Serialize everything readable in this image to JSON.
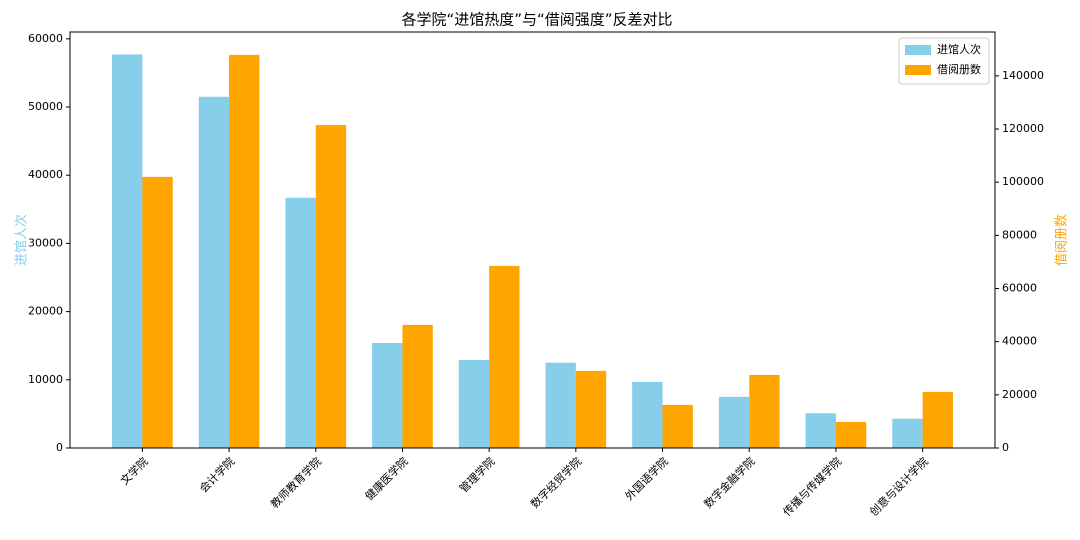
{
  "chart_data": {
    "type": "bar",
    "title": "各学院“进馆热度”与“借阅强度”反差对比",
    "ylabel": "进馆人次",
    "y2label": "借阅册数",
    "categories": [
      "文学院",
      "会计学院",
      "教师教育学院",
      "健康医学院",
      "管理学院",
      "数字经贸学院",
      "外国语学院",
      "数字金融学院",
      "传播与传媒学院",
      "创意与设计学院"
    ],
    "series": [
      {
        "name": "进馆人次",
        "color": "#87ceeb",
        "axis": "y",
        "values": [
          57700,
          51500,
          36700,
          15400,
          12900,
          12500,
          9700,
          7500,
          5100,
          4300
        ]
      },
      {
        "name": "借阅册数",
        "color": "#ffa500",
        "axis": "y2",
        "values": [
          102000,
          147900,
          121500,
          46300,
          68500,
          29000,
          16200,
          27500,
          9800,
          21100
        ]
      }
    ],
    "ylim": [
      0,
      61000
    ],
    "yticks": [
      0,
      10000,
      20000,
      30000,
      40000,
      50000,
      60000
    ],
    "y2lim": [
      0,
      156500
    ],
    "y2ticks": [
      0,
      20000,
      40000,
      60000,
      80000,
      100000,
      120000,
      140000
    ],
    "grid": false,
    "legend": "upper right"
  }
}
